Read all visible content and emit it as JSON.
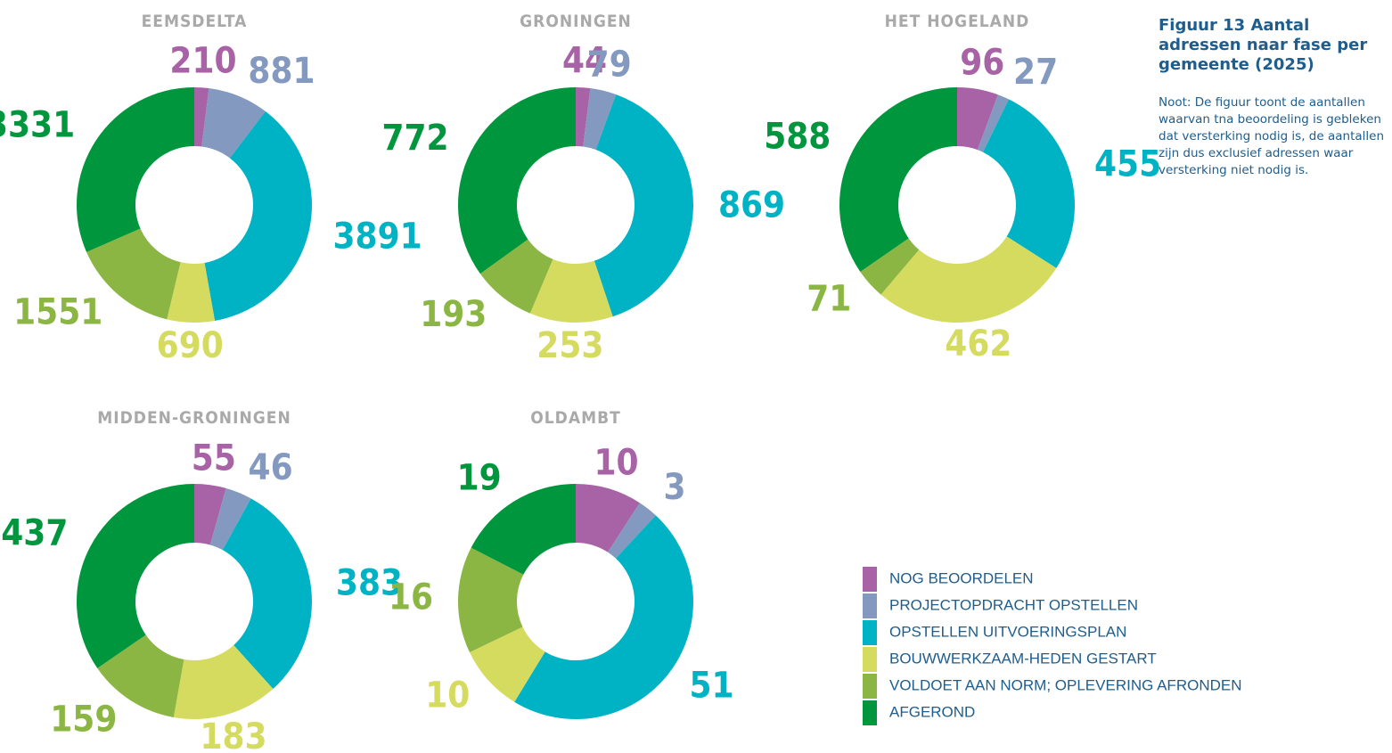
{
  "title": "Figuur 13  Aantal adressen naar fase per gemeente (2025)",
  "note": "Noot: De figuur toont de aantallen waarvan tna beoordeling is gebleken dat versterking nodig is, de aantallen zijn dus exclusief adressen waar versterking niet nodig is.",
  "categories": [
    "NOG BEOORDELEN",
    "PROJECTOPDRACHT OPSTELLEN",
    "OPSTELLEN UITVOERINGSPLAN",
    "BOUWWERKZAAM-HEDEN GESTART",
    "VOLDOET AAN NORM; OPLEVERING AFRONDEN",
    "AFGEROND"
  ],
  "colors": [
    "#a862a6",
    "#8399bf",
    "#00b3c4",
    "#d4db5f",
    "#8bb643",
    "#00963d"
  ],
  "chart_data": [
    {
      "type": "pie",
      "title": "EEMSDELTA",
      "values": [
        210,
        881,
        3891,
        690,
        1551,
        3331
      ]
    },
    {
      "type": "pie",
      "title": "GRONINGEN",
      "values": [
        44,
        79,
        869,
        253,
        193,
        772
      ]
    },
    {
      "type": "pie",
      "title": "HET HOGELAND",
      "values": [
        96,
        27,
        455,
        462,
        71,
        588
      ]
    },
    {
      "type": "pie",
      "title": "MIDDEN-GRONINGEN",
      "values": [
        55,
        46,
        383,
        183,
        159,
        437
      ]
    },
    {
      "type": "pie",
      "title": "OLDAMBT",
      "values": [
        10,
        3,
        51,
        10,
        16,
        19
      ]
    }
  ]
}
